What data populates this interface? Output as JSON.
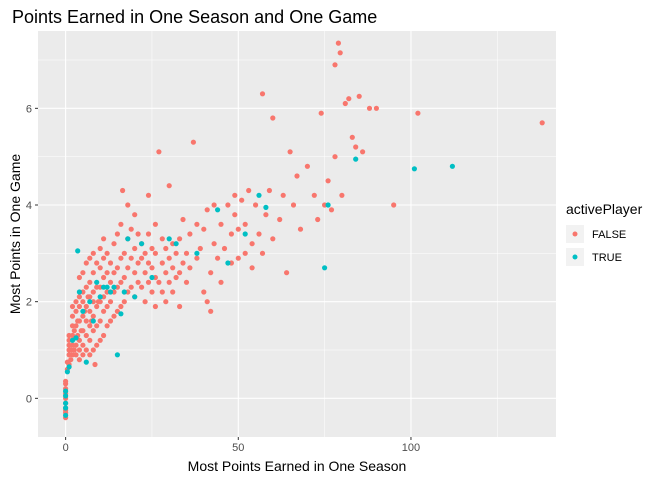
{
  "chart_data": {
    "type": "scatter",
    "title": "Points Earned in One Season and One Game",
    "xlabel": "Most Points Earned in One Season",
    "ylabel": "Most Points in One Game",
    "xlim": [
      -8,
      142
    ],
    "ylim": [
      -0.8,
      7.6
    ],
    "x_ticks": [
      0,
      50,
      100
    ],
    "x_tick_labels": [
      "0",
      "50",
      "100"
    ],
    "y_ticks": [
      0,
      2,
      4,
      6
    ],
    "y_tick_labels": [
      "0",
      "2",
      "4",
      "6"
    ],
    "grid": true,
    "legend": {
      "title": "activePlayer",
      "position": "right",
      "entries": [
        {
          "label": "FALSE",
          "color": "#F8766D"
        },
        {
          "label": "TRUE",
          "color": "#00BFC4"
        }
      ]
    },
    "series": [
      {
        "name": "FALSE",
        "color": "#F8766D",
        "points": [
          [
            0,
            -0.4
          ],
          [
            0,
            -0.3
          ],
          [
            0,
            -0.25
          ],
          [
            0,
            -0.2
          ],
          [
            0,
            -0.1
          ],
          [
            0,
            0
          ],
          [
            0,
            0.1
          ],
          [
            0,
            0.2
          ],
          [
            0,
            0.3
          ],
          [
            0,
            0.35
          ],
          [
            0.5,
            0.6
          ],
          [
            0.5,
            0.75
          ],
          [
            1,
            0.7
          ],
          [
            1,
            0.9
          ],
          [
            1,
            1.0
          ],
          [
            1,
            1.1
          ],
          [
            1,
            1.2
          ],
          [
            1,
            1.3
          ],
          [
            1.5,
            0.8
          ],
          [
            1.5,
            1.0
          ],
          [
            2,
            0.9
          ],
          [
            2,
            1.1
          ],
          [
            2,
            1.2
          ],
          [
            2,
            1.3
          ],
          [
            2,
            1.5
          ],
          [
            2,
            1.7
          ],
          [
            2,
            1.9
          ],
          [
            2.5,
            1.0
          ],
          [
            2.5,
            1.4
          ],
          [
            3,
            0.9
          ],
          [
            3,
            1.1
          ],
          [
            3,
            1.25
          ],
          [
            3,
            1.5
          ],
          [
            3,
            1.8
          ],
          [
            3,
            2.0
          ],
          [
            3.5,
            1.3
          ],
          [
            3.5,
            1.6
          ],
          [
            4,
            0.8
          ],
          [
            4,
            1.0
          ],
          [
            4,
            1.2
          ],
          [
            4,
            1.6
          ],
          [
            4,
            1.9
          ],
          [
            4,
            2.1
          ],
          [
            4,
            2.5
          ],
          [
            4.5,
            1.4
          ],
          [
            5,
            0.9
          ],
          [
            5,
            1.1
          ],
          [
            5,
            1.4
          ],
          [
            5,
            1.7
          ],
          [
            5,
            2.0
          ],
          [
            5,
            2.2
          ],
          [
            5,
            2.6
          ],
          [
            5.5,
            1.8
          ],
          [
            6,
            1.0
          ],
          [
            6,
            1.3
          ],
          [
            6,
            1.6
          ],
          [
            6,
            1.9
          ],
          [
            6,
            2.3
          ],
          [
            6,
            2.8
          ],
          [
            6.5,
            2.1
          ],
          [
            7,
            0.9
          ],
          [
            7,
            1.2
          ],
          [
            7,
            1.5
          ],
          [
            7,
            1.8
          ],
          [
            7,
            2.1
          ],
          [
            7,
            2.4
          ],
          [
            7,
            2.9
          ],
          [
            7.5,
            1.6
          ],
          [
            8,
            1.0
          ],
          [
            8,
            1.4
          ],
          [
            8,
            1.7
          ],
          [
            8,
            2.0
          ],
          [
            8,
            2.2
          ],
          [
            8,
            2.6
          ],
          [
            8,
            3.0
          ],
          [
            8.5,
            0.7
          ],
          [
            9,
            1.1
          ],
          [
            9,
            1.5
          ],
          [
            9,
            1.9
          ],
          [
            9,
            2.3
          ],
          [
            9,
            2.8
          ],
          [
            9.5,
            2.0
          ],
          [
            10,
            1.2
          ],
          [
            10,
            1.6
          ],
          [
            10,
            2.0
          ],
          [
            10,
            2.3
          ],
          [
            10,
            2.7
          ],
          [
            10,
            3.1
          ],
          [
            11,
            1.3
          ],
          [
            11,
            1.8
          ],
          [
            11,
            2.1
          ],
          [
            11,
            2.5
          ],
          [
            11,
            2.9
          ],
          [
            11,
            3.3
          ],
          [
            12,
            1.5
          ],
          [
            12,
            1.9
          ],
          [
            12,
            2.2
          ],
          [
            12,
            2.6
          ],
          [
            12,
            3.0
          ],
          [
            13,
            1.6
          ],
          [
            13,
            2.0
          ],
          [
            13,
            2.4
          ],
          [
            13,
            2.8
          ],
          [
            14,
            1.7
          ],
          [
            14,
            2.2
          ],
          [
            14,
            2.6
          ],
          [
            14,
            3.2
          ],
          [
            15,
            1.8
          ],
          [
            15,
            2.3
          ],
          [
            15,
            2.7
          ],
          [
            15,
            3.4
          ],
          [
            16,
            1.9
          ],
          [
            16,
            2.4
          ],
          [
            16,
            2.9
          ],
          [
            16,
            3.6
          ],
          [
            16.5,
            4.3
          ],
          [
            17,
            2.0
          ],
          [
            17,
            2.5
          ],
          [
            17,
            3.0
          ],
          [
            18,
            2.2
          ],
          [
            18,
            2.7
          ],
          [
            18,
            3.3
          ],
          [
            18,
            4.0
          ],
          [
            19,
            2.3
          ],
          [
            19,
            2.9
          ],
          [
            19,
            3.5
          ],
          [
            20,
            2.1
          ],
          [
            20,
            2.6
          ],
          [
            20,
            3.1
          ],
          [
            20,
            3.8
          ],
          [
            21,
            2.4
          ],
          [
            21,
            2.8
          ],
          [
            21,
            3.4
          ],
          [
            22,
            2.3
          ],
          [
            22,
            2.9
          ],
          [
            22,
            3.2
          ],
          [
            23,
            2.0
          ],
          [
            23,
            2.6
          ],
          [
            23,
            3.0
          ],
          [
            24,
            2.4
          ],
          [
            24,
            2.8
          ],
          [
            24,
            3.4
          ],
          [
            24,
            4.2
          ],
          [
            25,
            2.2
          ],
          [
            25,
            2.7
          ],
          [
            25,
            3.1
          ],
          [
            26,
            1.9
          ],
          [
            26,
            2.5
          ],
          [
            26,
            3.0
          ],
          [
            26,
            3.6
          ],
          [
            27,
            2.4
          ],
          [
            27,
            5.1
          ],
          [
            28,
            2.2
          ],
          [
            28,
            2.8
          ],
          [
            28,
            3.3
          ],
          [
            29,
            2.0
          ],
          [
            29,
            2.6
          ],
          [
            29,
            3.1
          ],
          [
            30,
            2.4
          ],
          [
            30,
            2.9
          ],
          [
            30,
            4.4
          ],
          [
            31,
            2.2
          ],
          [
            31,
            2.7
          ],
          [
            31,
            3.2
          ],
          [
            32,
            2.5
          ],
          [
            32,
            3.0
          ],
          [
            33,
            1.9
          ],
          [
            33,
            2.6
          ],
          [
            33,
            3.3
          ],
          [
            34,
            2.8
          ],
          [
            34,
            3.7
          ],
          [
            35,
            2.4
          ],
          [
            35,
            3.0
          ],
          [
            36,
            2.7
          ],
          [
            36,
            3.4
          ],
          [
            37,
            5.3
          ],
          [
            38,
            2.9
          ],
          [
            38,
            3.6
          ],
          [
            39,
            3.1
          ],
          [
            40,
            3.5
          ],
          [
            40,
            2.2
          ],
          [
            41,
            2.0
          ],
          [
            41,
            3.9
          ],
          [
            42,
            1.8
          ],
          [
            42,
            2.6
          ],
          [
            43,
            3.2
          ],
          [
            43,
            4.0
          ],
          [
            44,
            2.9
          ],
          [
            45,
            2.4
          ],
          [
            45,
            3.6
          ],
          [
            46,
            3.1
          ],
          [
            47,
            4.0
          ],
          [
            48,
            2.8
          ],
          [
            48,
            3.4
          ],
          [
            49,
            3.8
          ],
          [
            49,
            4.2
          ],
          [
            50,
            2.9
          ],
          [
            50,
            3.5
          ],
          [
            51,
            4.1
          ],
          [
            52,
            3.0
          ],
          [
            52,
            3.6
          ],
          [
            53,
            4.3
          ],
          [
            54,
            2.7
          ],
          [
            54,
            3.2
          ],
          [
            55,
            4.0
          ],
          [
            56,
            3.4
          ],
          [
            57,
            3.0
          ],
          [
            57,
            6.3
          ],
          [
            58,
            3.8
          ],
          [
            59,
            4.3
          ],
          [
            60,
            3.3
          ],
          [
            60,
            5.8
          ],
          [
            62,
            3.7
          ],
          [
            63,
            4.2
          ],
          [
            64,
            2.6
          ],
          [
            65,
            5.1
          ],
          [
            66,
            4.0
          ],
          [
            67,
            4.6
          ],
          [
            68,
            3.5
          ],
          [
            70,
            4.8
          ],
          [
            72,
            4.2
          ],
          [
            73,
            3.7
          ],
          [
            74,
            5.9
          ],
          [
            75,
            4.0
          ],
          [
            76,
            4.5
          ],
          [
            77,
            3.9
          ],
          [
            78,
            6.9
          ],
          [
            78,
            5.0
          ],
          [
            79,
            7.35
          ],
          [
            79.5,
            7.15
          ],
          [
            80,
            4.2
          ],
          [
            81,
            6.1
          ],
          [
            82,
            6.2
          ],
          [
            83,
            5.4
          ],
          [
            84,
            5.2
          ],
          [
            85,
            6.25
          ],
          [
            86,
            5.1
          ],
          [
            88,
            6.0
          ],
          [
            90,
            6.0
          ],
          [
            95,
            4.0
          ],
          [
            102,
            5.9
          ],
          [
            138,
            5.7
          ]
        ]
      },
      {
        "name": "TRUE",
        "color": "#00BFC4",
        "points": [
          [
            0,
            -0.35
          ],
          [
            0,
            -0.2
          ],
          [
            0,
            -0.1
          ],
          [
            0,
            0.05
          ],
          [
            0,
            0.15
          ],
          [
            0.5,
            0.55
          ],
          [
            1,
            0.65
          ],
          [
            2,
            1.2
          ],
          [
            3,
            1.25
          ],
          [
            3.5,
            3.05
          ],
          [
            4,
            2.2
          ],
          [
            5,
            1.8
          ],
          [
            6,
            0.75
          ],
          [
            7,
            2.0
          ],
          [
            8,
            1.6
          ],
          [
            9,
            2.4
          ],
          [
            10,
            2.1
          ],
          [
            11,
            2.3
          ],
          [
            12,
            2.3
          ],
          [
            13,
            2.2
          ],
          [
            14,
            2.3
          ],
          [
            15,
            0.9
          ],
          [
            16,
            1.75
          ],
          [
            17,
            2.2
          ],
          [
            18,
            3.3
          ],
          [
            20,
            2.1
          ],
          [
            22,
            3.2
          ],
          [
            25,
            2.5
          ],
          [
            30,
            3.3
          ],
          [
            32,
            3.2
          ],
          [
            38,
            3.0
          ],
          [
            44,
            3.9
          ],
          [
            47,
            2.8
          ],
          [
            52,
            3.4
          ],
          [
            56,
            4.2
          ],
          [
            58,
            3.95
          ],
          [
            75,
            2.7
          ],
          [
            76,
            4.0
          ],
          [
            84,
            4.95
          ],
          [
            101,
            4.75
          ],
          [
            112,
            4.8
          ]
        ]
      }
    ]
  }
}
